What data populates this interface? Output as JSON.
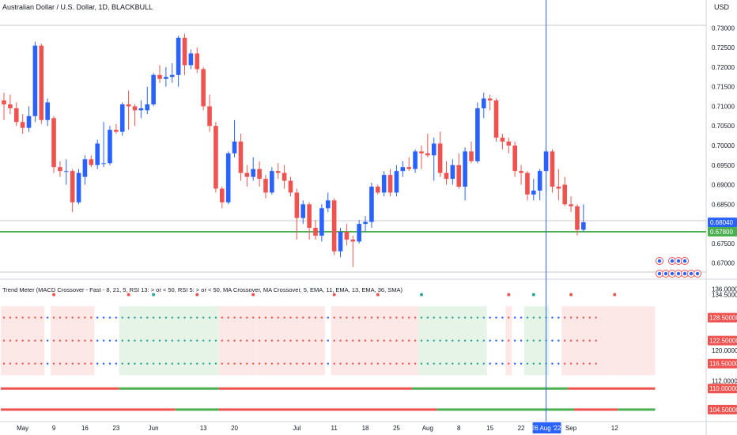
{
  "header": {
    "title": "Australian Dollar / U.S. Dollar, 1D, BLACKBULL",
    "currency": "USD"
  },
  "indicator": {
    "title": "Trend Meter (MACD Crossover - Fast - 8, 21, 5, RSI 13: > or < 50, RSI 5: > or < 50, MA Crossover, MA Crossover, 5, EMA, 11, EMA, 13, EMA, 36, SMA)"
  },
  "colors": {
    "up": "#2962ff",
    "down": "#ef5350",
    "green": "#4caf50",
    "crosshair": "#2962ff",
    "bg_red": "#fde8e8",
    "bg_green": "#e6f4e8",
    "dot_red": "#ef5350",
    "dot_blue": "#2962ff",
    "dot_green": "#26a69a"
  },
  "chart_data": [
    {
      "type": "candlestick",
      "price_axis": {
        "ticks": [
          "0.73000",
          "0.72500",
          "0.72000",
          "0.71500",
          "0.71000",
          "0.70500",
          "0.70000",
          "0.69500",
          "0.69000",
          "0.68500",
          "0.67500",
          "0.67000"
        ],
        "tick_values": [
          0.73,
          0.725,
          0.72,
          0.715,
          0.71,
          0.705,
          0.7,
          0.695,
          0.69,
          0.685,
          0.675,
          0.67
        ],
        "range": [
          0.6675,
          0.7335
        ]
      },
      "price_badges": [
        {
          "value": 0.6804,
          "label": "0.68040",
          "color": "#2962ff"
        },
        {
          "value": 0.678,
          "label": "0.67800",
          "color": "#4caf50"
        }
      ],
      "horizontal_line": {
        "value": 0.678,
        "color": "#4caf50"
      },
      "time_axis": {
        "labels": [
          "May",
          "9",
          "16",
          "23",
          "Jun",
          "13",
          "20",
          "Jul",
          "11",
          "18",
          "25",
          "Aug",
          "8",
          "15",
          "22",
          "26 Aug '22",
          "Sep",
          "12"
        ],
        "bar_index": [
          3,
          8,
          13,
          18,
          24,
          32,
          37,
          47,
          53,
          58,
          63,
          68,
          73,
          78,
          83,
          87,
          91,
          98
        ]
      },
      "crosshair_bar": 87,
      "candles": [
        {
          "o": 0.7115,
          "h": 0.7135,
          "l": 0.7065,
          "c": 0.7105
        },
        {
          "o": 0.7105,
          "h": 0.713,
          "l": 0.708,
          "c": 0.7095
        },
        {
          "o": 0.7095,
          "h": 0.711,
          "l": 0.705,
          "c": 0.706
        },
        {
          "o": 0.706,
          "h": 0.708,
          "l": 0.703,
          "c": 0.7045
        },
        {
          "o": 0.7045,
          "h": 0.71,
          "l": 0.7035,
          "c": 0.7075
        },
        {
          "o": 0.7075,
          "h": 0.7265,
          "l": 0.706,
          "c": 0.7255
        },
        {
          "o": 0.7255,
          "h": 0.726,
          "l": 0.7055,
          "c": 0.7065
        },
        {
          "o": 0.7065,
          "h": 0.712,
          "l": 0.705,
          "c": 0.711
        },
        {
          "o": 0.707,
          "h": 0.7075,
          "l": 0.693,
          "c": 0.6945
        },
        {
          "o": 0.6945,
          "h": 0.696,
          "l": 0.692,
          "c": 0.6935
        },
        {
          "o": 0.6935,
          "h": 0.6965,
          "l": 0.69,
          "c": 0.6935
        },
        {
          "o": 0.6935,
          "h": 0.694,
          "l": 0.683,
          "c": 0.6855
        },
        {
          "o": 0.6855,
          "h": 0.694,
          "l": 0.685,
          "c": 0.693
        },
        {
          "o": 0.692,
          "h": 0.6975,
          "l": 0.69,
          "c": 0.6965
        },
        {
          "o": 0.6965,
          "h": 0.6975,
          "l": 0.6945,
          "c": 0.695
        },
        {
          "o": 0.695,
          "h": 0.7015,
          "l": 0.694,
          "c": 0.7005
        },
        {
          "o": 0.6955,
          "h": 0.706,
          "l": 0.6945,
          "c": 0.6955
        },
        {
          "o": 0.6955,
          "h": 0.705,
          "l": 0.695,
          "c": 0.704
        },
        {
          "o": 0.704,
          "h": 0.7055,
          "l": 0.703,
          "c": 0.7035
        },
        {
          "o": 0.7035,
          "h": 0.711,
          "l": 0.7025,
          "c": 0.7105
        },
        {
          "o": 0.7105,
          "h": 0.714,
          "l": 0.704,
          "c": 0.71
        },
        {
          "o": 0.71,
          "h": 0.7105,
          "l": 0.705,
          "c": 0.709
        },
        {
          "o": 0.709,
          "h": 0.7115,
          "l": 0.707,
          "c": 0.7095
        },
        {
          "o": 0.709,
          "h": 0.715,
          "l": 0.708,
          "c": 0.7105
        },
        {
          "o": 0.7105,
          "h": 0.7185,
          "l": 0.71,
          "c": 0.718
        },
        {
          "o": 0.718,
          "h": 0.7205,
          "l": 0.716,
          "c": 0.717
        },
        {
          "o": 0.717,
          "h": 0.72,
          "l": 0.715,
          "c": 0.7175
        },
        {
          "o": 0.7175,
          "h": 0.721,
          "l": 0.716,
          "c": 0.718
        },
        {
          "o": 0.718,
          "h": 0.728,
          "l": 0.715,
          "c": 0.7275
        },
        {
          "o": 0.7275,
          "h": 0.7285,
          "l": 0.718,
          "c": 0.7205
        },
        {
          "o": 0.7205,
          "h": 0.7245,
          "l": 0.7195,
          "c": 0.7235
        },
        {
          "o": 0.7235,
          "h": 0.725,
          "l": 0.7185,
          "c": 0.7195
        },
        {
          "o": 0.7195,
          "h": 0.72,
          "l": 0.709,
          "c": 0.71
        },
        {
          "o": 0.71,
          "h": 0.713,
          "l": 0.7035,
          "c": 0.705
        },
        {
          "o": 0.705,
          "h": 0.706,
          "l": 0.688,
          "c": 0.689
        },
        {
          "o": 0.689,
          "h": 0.6895,
          "l": 0.684,
          "c": 0.6855
        },
        {
          "o": 0.6855,
          "h": 0.6985,
          "l": 0.685,
          "c": 0.698
        },
        {
          "o": 0.698,
          "h": 0.7065,
          "l": 0.697,
          "c": 0.701
        },
        {
          "o": 0.701,
          "h": 0.703,
          "l": 0.691,
          "c": 0.693
        },
        {
          "o": 0.693,
          "h": 0.695,
          "l": 0.6895,
          "c": 0.692
        },
        {
          "o": 0.692,
          "h": 0.697,
          "l": 0.691,
          "c": 0.694
        },
        {
          "o": 0.694,
          "h": 0.696,
          "l": 0.6895,
          "c": 0.6915
        },
        {
          "o": 0.6915,
          "h": 0.6925,
          "l": 0.6865,
          "c": 0.688
        },
        {
          "o": 0.688,
          "h": 0.6945,
          "l": 0.6875,
          "c": 0.6935
        },
        {
          "o": 0.6935,
          "h": 0.6955,
          "l": 0.6915,
          "c": 0.693
        },
        {
          "o": 0.693,
          "h": 0.695,
          "l": 0.689,
          "c": 0.691
        },
        {
          "o": 0.691,
          "h": 0.692,
          "l": 0.687,
          "c": 0.688
        },
        {
          "o": 0.688,
          "h": 0.689,
          "l": 0.676,
          "c": 0.6815
        },
        {
          "o": 0.6815,
          "h": 0.686,
          "l": 0.68,
          "c": 0.685
        },
        {
          "o": 0.685,
          "h": 0.6855,
          "l": 0.676,
          "c": 0.679
        },
        {
          "o": 0.679,
          "h": 0.681,
          "l": 0.676,
          "c": 0.677
        },
        {
          "o": 0.677,
          "h": 0.685,
          "l": 0.6755,
          "c": 0.684
        },
        {
          "o": 0.684,
          "h": 0.688,
          "l": 0.683,
          "c": 0.686
        },
        {
          "o": 0.686,
          "h": 0.6865,
          "l": 0.672,
          "c": 0.673
        },
        {
          "o": 0.673,
          "h": 0.679,
          "l": 0.6715,
          "c": 0.678
        },
        {
          "o": 0.678,
          "h": 0.68,
          "l": 0.6745,
          "c": 0.676
        },
        {
          "o": 0.676,
          "h": 0.677,
          "l": 0.669,
          "c": 0.6755
        },
        {
          "o": 0.6755,
          "h": 0.681,
          "l": 0.675,
          "c": 0.68
        },
        {
          "o": 0.68,
          "h": 0.682,
          "l": 0.678,
          "c": 0.6805
        },
        {
          "o": 0.6805,
          "h": 0.6905,
          "l": 0.679,
          "c": 0.6895
        },
        {
          "o": 0.6895,
          "h": 0.69,
          "l": 0.6875,
          "c": 0.688
        },
        {
          "o": 0.688,
          "h": 0.6935,
          "l": 0.687,
          "c": 0.6925
        },
        {
          "o": 0.6925,
          "h": 0.694,
          "l": 0.687,
          "c": 0.688
        },
        {
          "o": 0.688,
          "h": 0.695,
          "l": 0.687,
          "c": 0.6935
        },
        {
          "o": 0.6935,
          "h": 0.696,
          "l": 0.692,
          "c": 0.6945
        },
        {
          "o": 0.6945,
          "h": 0.697,
          "l": 0.6935,
          "c": 0.694
        },
        {
          "o": 0.694,
          "h": 0.699,
          "l": 0.693,
          "c": 0.6985
        },
        {
          "o": 0.6985,
          "h": 0.7,
          "l": 0.694,
          "c": 0.698
        },
        {
          "o": 0.698,
          "h": 0.703,
          "l": 0.697,
          "c": 0.6975
        },
        {
          "o": 0.6975,
          "h": 0.702,
          "l": 0.691,
          "c": 0.7005
        },
        {
          "o": 0.7005,
          "h": 0.7035,
          "l": 0.692,
          "c": 0.693
        },
        {
          "o": 0.693,
          "h": 0.696,
          "l": 0.69,
          "c": 0.6915
        },
        {
          "o": 0.6915,
          "h": 0.6965,
          "l": 0.69,
          "c": 0.695
        },
        {
          "o": 0.695,
          "h": 0.698,
          "l": 0.689,
          "c": 0.6895
        },
        {
          "o": 0.6895,
          "h": 0.6995,
          "l": 0.686,
          "c": 0.6985
        },
        {
          "o": 0.6985,
          "h": 0.701,
          "l": 0.6955,
          "c": 0.696
        },
        {
          "o": 0.696,
          "h": 0.711,
          "l": 0.6955,
          "c": 0.7095
        },
        {
          "o": 0.7095,
          "h": 0.7135,
          "l": 0.707,
          "c": 0.712
        },
        {
          "o": 0.712,
          "h": 0.713,
          "l": 0.709,
          "c": 0.7115
        },
        {
          "o": 0.7115,
          "h": 0.712,
          "l": 0.701,
          "c": 0.702
        },
        {
          "o": 0.702,
          "h": 0.703,
          "l": 0.699,
          "c": 0.701
        },
        {
          "o": 0.701,
          "h": 0.702,
          "l": 0.698,
          "c": 0.7
        },
        {
          "o": 0.7,
          "h": 0.701,
          "l": 0.692,
          "c": 0.6935
        },
        {
          "o": 0.6935,
          "h": 0.695,
          "l": 0.69,
          "c": 0.693
        },
        {
          "o": 0.693,
          "h": 0.6935,
          "l": 0.686,
          "c": 0.6875
        },
        {
          "o": 0.6875,
          "h": 0.6915,
          "l": 0.686,
          "c": 0.6885
        },
        {
          "o": 0.6885,
          "h": 0.694,
          "l": 0.686,
          "c": 0.6935
        },
        {
          "o": 0.6935,
          "h": 0.699,
          "l": 0.688,
          "c": 0.6985
        },
        {
          "o": 0.6985,
          "h": 0.699,
          "l": 0.688,
          "c": 0.6895
        },
        {
          "o": 0.6895,
          "h": 0.694,
          "l": 0.686,
          "c": 0.689
        },
        {
          "o": 0.69,
          "h": 0.692,
          "l": 0.6845,
          "c": 0.685
        },
        {
          "o": 0.685,
          "h": 0.687,
          "l": 0.683,
          "c": 0.6845
        },
        {
          "o": 0.6845,
          "h": 0.685,
          "l": 0.677,
          "c": 0.6785
        },
        {
          "o": 0.6785,
          "h": 0.685,
          "l": 0.678,
          "c": 0.6804
        }
      ]
    },
    {
      "type": "indicator",
      "axis_labels": [
        {
          "value": 136.0,
          "label": "136.00000",
          "badge": false
        },
        {
          "value": 134.5,
          "label": "134.50000",
          "badge": false
        },
        {
          "value": 128.5,
          "label": "128.50000",
          "badge": true
        },
        {
          "value": 122.5,
          "label": "122.50000",
          "badge": true
        },
        {
          "value": 120.0,
          "label": "120.00000",
          "badge": false
        },
        {
          "value": 116.5,
          "label": "116.50000",
          "badge": true
        },
        {
          "value": 112.0,
          "label": "112.00000",
          "badge": false
        },
        {
          "value": 110.0,
          "label": "110.00000",
          "badge": true
        },
        {
          "value": 104.5,
          "label": "104.50000",
          "badge": true
        }
      ],
      "range": [
        102.0,
        137.5
      ],
      "dot_rows": [
        128.5,
        122.5,
        116.5
      ],
      "signal_row": 134.5,
      "background_zones": [
        {
          "from": 0,
          "to": 6,
          "state": "red"
        },
        {
          "from": 8,
          "to": 14,
          "state": "red"
        },
        {
          "from": 19,
          "to": 21,
          "state": "green"
        },
        {
          "from": 22,
          "to": 34,
          "state": "green"
        },
        {
          "from": 35,
          "to": 40,
          "state": "red"
        },
        {
          "from": 41,
          "to": 51,
          "state": "red"
        },
        {
          "from": 53,
          "to": 58,
          "state": "red"
        },
        {
          "from": 59,
          "to": 66,
          "state": "red"
        },
        {
          "from": 67,
          "to": 77,
          "state": "green"
        },
        {
          "from": 81,
          "to": 81,
          "state": "red"
        },
        {
          "from": 84,
          "to": 87,
          "state": "green"
        },
        {
          "from": 90,
          "to": 97,
          "state": "red"
        },
        {
          "from": 98,
          "to": 104,
          "state": "red"
        }
      ],
      "signals": [
        {
          "bar": 8,
          "state": "red"
        },
        {
          "bar": 20,
          "state": "red"
        },
        {
          "bar": 24,
          "state": "green"
        },
        {
          "bar": 31,
          "state": "red"
        },
        {
          "bar": 40,
          "state": "red"
        },
        {
          "bar": 53,
          "state": "red"
        },
        {
          "bar": 60,
          "state": "red"
        },
        {
          "bar": 67,
          "state": "green"
        },
        {
          "bar": 81,
          "state": "red"
        },
        {
          "bar": 85,
          "state": "green"
        },
        {
          "bar": 91,
          "state": "red"
        },
        {
          "bar": 98,
          "state": "red"
        }
      ],
      "line_110": [
        {
          "from": 0,
          "to": 18,
          "state": "red"
        },
        {
          "from": 19,
          "to": 34,
          "state": "green"
        },
        {
          "from": 35,
          "to": 65,
          "state": "red"
        },
        {
          "from": 66,
          "to": 90,
          "state": "green"
        },
        {
          "from": 91,
          "to": 104,
          "state": "red"
        }
      ],
      "line_104": [
        {
          "from": 0,
          "to": 27,
          "state": "red"
        },
        {
          "from": 28,
          "to": 34,
          "state": "green"
        },
        {
          "from": 35,
          "to": 69,
          "state": "red"
        },
        {
          "from": 70,
          "to": 91,
          "state": "green"
        },
        {
          "from": 92,
          "to": 98,
          "state": "red"
        },
        {
          "from": 99,
          "to": 104,
          "state": "green"
        }
      ]
    }
  ]
}
